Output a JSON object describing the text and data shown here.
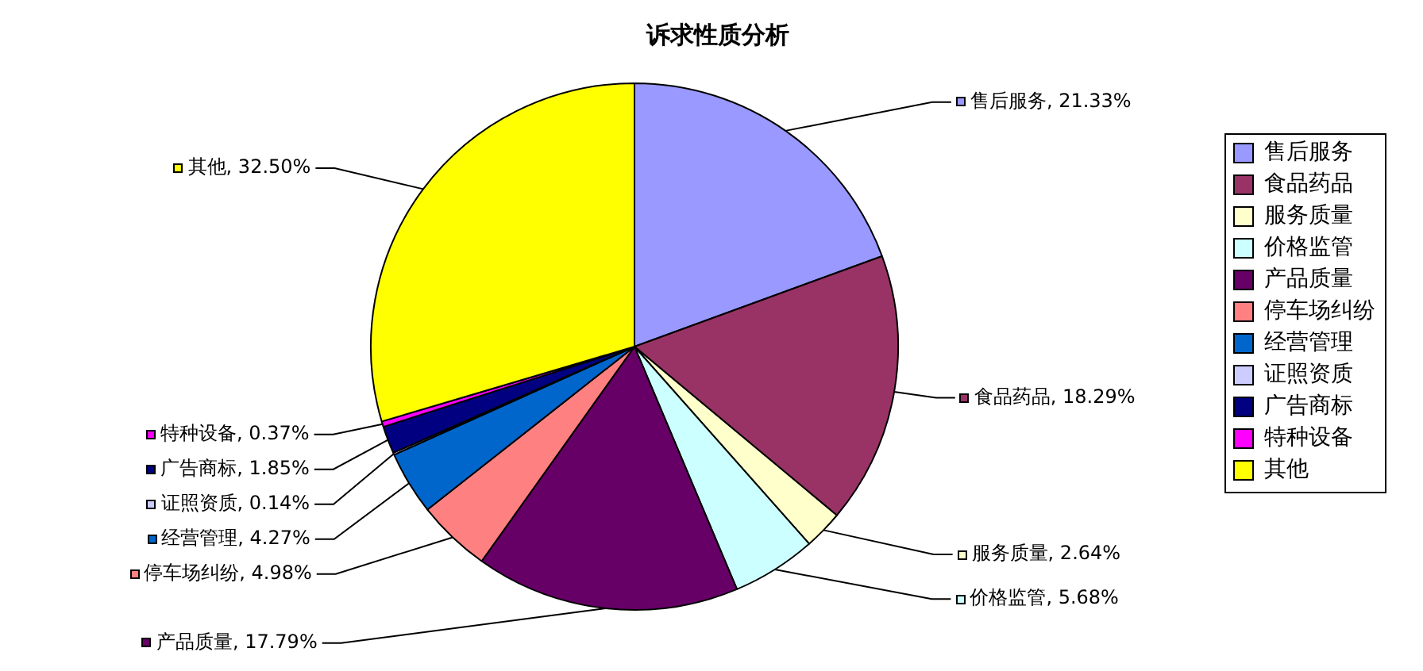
{
  "chart_data": {
    "type": "pie",
    "title": "诉求性质分析",
    "categories": [
      "售后服务",
      "食品药品",
      "服务质量",
      "价格监管",
      "产品质量",
      "停车场纠纷",
      "经营管理",
      "证照资质",
      "广告商标",
      "特种设备",
      "其他"
    ],
    "values": [
      21.33,
      18.29,
      2.64,
      5.68,
      17.79,
      4.98,
      4.27,
      0.14,
      1.85,
      0.37,
      32.5
    ],
    "value_labels": [
      "售后服务, 21.33%",
      "食品药品, 18.29%",
      "服务质量, 2.64%",
      "价格监管, 5.68%",
      "产品质量, 17.79%",
      "停车场纠纷, 4.98%",
      "经营管理, 4.27%",
      "证照资质, 0.14%",
      "广告商标, 1.85%",
      "特种设备, 0.37%",
      "其他, 32.50%"
    ],
    "colors": [
      "#9999ff",
      "#993366",
      "#ffffcc",
      "#ccffff",
      "#660066",
      "#ff8080",
      "#0066cc",
      "#ccccff",
      "#000080",
      "#ff00ff",
      "#ffff00"
    ],
    "legend": "right"
  }
}
